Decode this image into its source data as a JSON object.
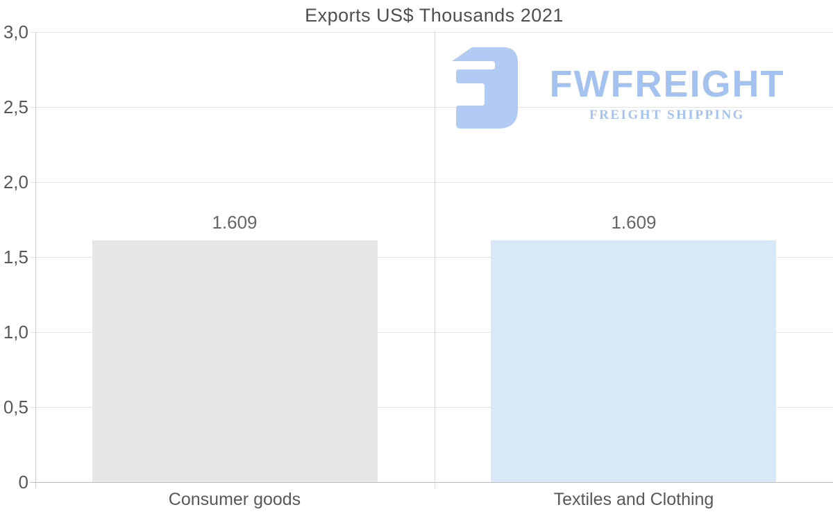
{
  "chart_data": {
    "type": "bar",
    "title": "Exports US$ Thousands 2021",
    "categories": [
      "Consumer goods",
      "Textiles and Clothing"
    ],
    "values": [
      1.609,
      1.609
    ],
    "value_labels": [
      "1.609",
      "1.609"
    ],
    "bar_colors": [
      "#e7e7e7",
      "#d9e8f8"
    ],
    "ylim": [
      0,
      3
    ],
    "yticks": [
      0,
      0.5,
      1,
      1.5,
      2,
      2.5,
      3
    ],
    "ytick_labels": [
      "0",
      "0,5",
      "1,0",
      "1,5",
      "2,0",
      "2,5",
      "3,0"
    ],
    "xlabel": "",
    "ylabel": "",
    "grid": true,
    "legend": false,
    "decimal_separator": ",",
    "thousands_separator": "."
  },
  "logo": {
    "brand": "FWFREIGHT",
    "tagline": "FREIGHT SHIPPING",
    "text_color": "#a4c2f0",
    "mark_color": "#b1cbf4"
  },
  "colors": {
    "background": "#ffffff",
    "gridline": "#e3e3e3",
    "axis": "#cccccc",
    "baseline": "#bdbdbd",
    "title_text": "#4f4f50",
    "tick_text": "#58585a",
    "value_text": "#666667"
  }
}
